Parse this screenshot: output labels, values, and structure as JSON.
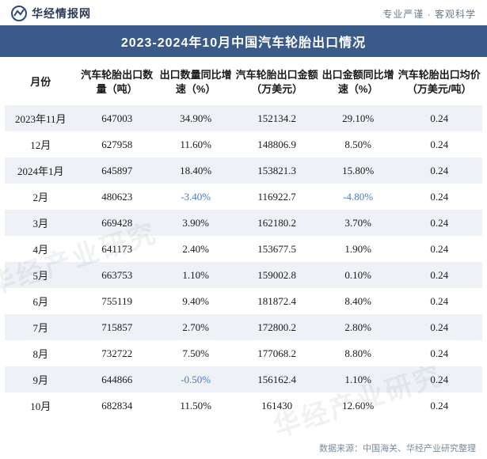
{
  "header": {
    "logo_text": "华经情报网",
    "tagline": "专业严谨 · 客观科学",
    "logo_color": "#2a4a7a"
  },
  "title": "2023-2024年10月中国汽车轮胎出口情况",
  "title_bg": "#3a5a8a",
  "title_color": "#ffffff",
  "columns": [
    "月份",
    "汽车轮胎出口数量（吨）",
    "出口数量同比增速（%）",
    "汽车轮胎出口金额（万美元）",
    "出口金额同比增速（%）",
    "汽车轮胎出口均价（万美元/吨）"
  ],
  "stripe_color": "#eef2f7",
  "negative_color": "#4a7ab8",
  "text_color": "#1a1a1a",
  "header_fontsize": 13,
  "cell_fontsize": 13,
  "rows": [
    {
      "month": "2023年11月",
      "qty": "647003",
      "qty_yoy": "34.90%",
      "amt": "152134.2",
      "amt_yoy": "29.10%",
      "price": "0.24",
      "qty_neg": false,
      "amt_neg": false
    },
    {
      "month": "12月",
      "qty": "627958",
      "qty_yoy": "11.60%",
      "amt": "148806.9",
      "amt_yoy": "8.50%",
      "price": "0.24",
      "qty_neg": false,
      "amt_neg": false
    },
    {
      "month": "2024年1月",
      "qty": "645897",
      "qty_yoy": "18.40%",
      "amt": "153821.3",
      "amt_yoy": "15.80%",
      "price": "0.24",
      "qty_neg": false,
      "amt_neg": false
    },
    {
      "month": "2月",
      "qty": "480623",
      "qty_yoy": "-3.40%",
      "amt": "116922.7",
      "amt_yoy": "-4.80%",
      "price": "0.24",
      "qty_neg": true,
      "amt_neg": true
    },
    {
      "month": "3月",
      "qty": "669428",
      "qty_yoy": "3.90%",
      "amt": "162180.2",
      "amt_yoy": "3.70%",
      "price": "0.24",
      "qty_neg": false,
      "amt_neg": false
    },
    {
      "month": "4月",
      "qty": "641173",
      "qty_yoy": "2.40%",
      "amt": "153677.5",
      "amt_yoy": "1.90%",
      "price": "0.24",
      "qty_neg": false,
      "amt_neg": false
    },
    {
      "month": "5月",
      "qty": "663753",
      "qty_yoy": "1.10%",
      "amt": "159002.8",
      "amt_yoy": "0.10%",
      "price": "0.24",
      "qty_neg": false,
      "amt_neg": false
    },
    {
      "month": "6月",
      "qty": "755119",
      "qty_yoy": "9.40%",
      "amt": "181872.4",
      "amt_yoy": "8.40%",
      "price": "0.24",
      "qty_neg": false,
      "amt_neg": false
    },
    {
      "month": "7月",
      "qty": "715857",
      "qty_yoy": "2.70%",
      "amt": "172800.2",
      "amt_yoy": "2.80%",
      "price": "0.24",
      "qty_neg": false,
      "amt_neg": false
    },
    {
      "month": "8月",
      "qty": "732722",
      "qty_yoy": "7.50%",
      "amt": "177068.2",
      "amt_yoy": "8.80%",
      "price": "0.24",
      "qty_neg": false,
      "amt_neg": false
    },
    {
      "month": "9月",
      "qty": "644866",
      "qty_yoy": "-0.50%",
      "amt": "156162.4",
      "amt_yoy": "1.10%",
      "price": "0.24",
      "qty_neg": true,
      "amt_neg": false
    },
    {
      "month": "10月",
      "qty": "682834",
      "qty_yoy": "11.50%",
      "amt": "161430",
      "amt_yoy": "12.60%",
      "price": "0.24",
      "qty_neg": false,
      "amt_neg": false
    }
  ],
  "footer": "数据来源：中国海关、华经产业研究整理",
  "watermark_text": "华经产业研究",
  "site": "huaon.com"
}
